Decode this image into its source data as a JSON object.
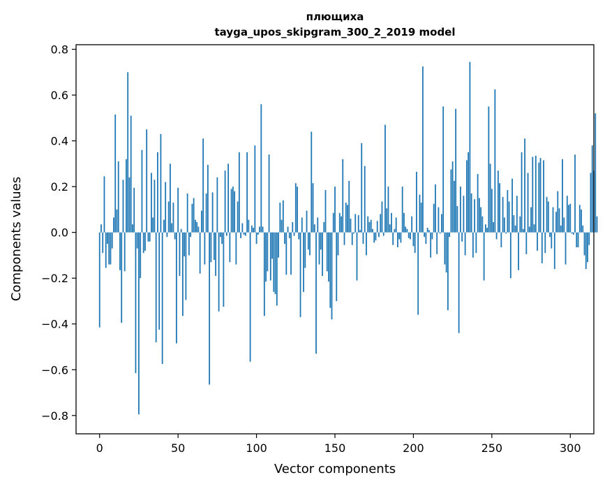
{
  "chart_data": {
    "type": "bar",
    "title": "плющиха",
    "subtitle": "tayga_upos_skipgram_300_2_2019 model",
    "xlabel": "Vector components",
    "ylabel": "Components values",
    "xlim": [
      -15,
      315
    ],
    "ylim": [
      -0.88,
      0.82
    ],
    "xticks": [
      0,
      50,
      100,
      150,
      200,
      250,
      300
    ],
    "xtick_labels": [
      "0",
      "50",
      "100",
      "150",
      "200",
      "250",
      "300"
    ],
    "yticks": [
      -0.8,
      -0.6,
      -0.4,
      -0.2,
      0.0,
      0.2,
      0.4,
      0.6,
      0.8
    ],
    "ytick_labels": [
      "−0.8",
      "−0.6",
      "−0.4",
      "−0.2",
      "0.0",
      "0.2",
      "0.4",
      "0.6",
      "0.8"
    ],
    "bar_color": "#1f77b4",
    "grid": false,
    "legend": "none",
    "values": [
      -0.415,
      0.035,
      -0.09,
      0.245,
      -0.155,
      -0.05,
      -0.14,
      -0.14,
      -0.07,
      0.065,
      0.515,
      0.1,
      0.31,
      -0.165,
      -0.395,
      0.23,
      -0.17,
      0.32,
      0.7,
      0.24,
      0.51,
      0.035,
      0.195,
      -0.615,
      -0.07,
      -0.795,
      -0.2,
      0.36,
      -0.09,
      -0.08,
      0.45,
      -0.04,
      -0.04,
      0.26,
      0.065,
      0.23,
      -0.48,
      0.35,
      -0.425,
      0.43,
      -0.575,
      0.055,
      0.22,
      -0.02,
      0.135,
      0.3,
      0.04,
      0.13,
      -0.03,
      -0.485,
      0.195,
      -0.19,
      0.015,
      -0.365,
      -0.105,
      -0.295,
      0.17,
      -0.1,
      -0.02,
      0.125,
      0.15,
      0.055,
      0.045,
      0.025,
      -0.18,
      0.095,
      0.41,
      -0.14,
      0.17,
      0.295,
      -0.665,
      -0.13,
      0.175,
      -0.12,
      -0.19,
      0.24,
      -0.345,
      -0.02,
      -0.05,
      -0.325,
      0.27,
      -0.015,
      0.3,
      -0.13,
      0.19,
      0.2,
      0.18,
      -0.14,
      0.135,
      0.35,
      -0.025,
      0.04,
      -0.01,
      -0.015,
      0.35,
      0.055,
      -0.565,
      0.03,
      0.02,
      0.38,
      -0.05,
      -0.01,
      0.025,
      0.56,
      0.025,
      -0.365,
      -0.215,
      -0.17,
      0.34,
      -0.21,
      -0.115,
      -0.26,
      -0.27,
      -0.32,
      -0.11,
      0.13,
      0.055,
      0.14,
      -0.05,
      -0.185,
      0.025,
      -0.025,
      -0.185,
      0.045,
      -0.015,
      0.215,
      0.2,
      -0.03,
      -0.37,
      0.065,
      -0.26,
      -0.155,
      0.095,
      -0.075,
      -0.1,
      0.44,
      0.215,
      0.035,
      -0.53,
      0.065,
      -0.14,
      -0.075,
      -0.19,
      0.045,
      0.185,
      -0.17,
      -0.215,
      -0.33,
      -0.38,
      0.085,
      0.2,
      -0.3,
      -0.1,
      0.085,
      0.07,
      0.32,
      -0.055,
      0.13,
      0.12,
      0.225,
      0.06,
      -0.055,
      -0.005,
      0.08,
      -0.21,
      0.075,
      0.01,
      0.39,
      -0.05,
      0.29,
      -0.1,
      0.07,
      0.045,
      0.055,
      0.015,
      -0.045,
      -0.035,
      0.05,
      -0.02,
      0.08,
      0.135,
      -0.015,
      0.47,
      0.105,
      0.2,
      0.035,
      0.085,
      -0.055,
      0.015,
      0.065,
      -0.065,
      -0.03,
      -0.045,
      0.2,
      0.085,
      0.025,
      0.015,
      -0.025,
      -0.03,
      0.07,
      -0.06,
      -0.09,
      0.265,
      -0.36,
      0.165,
      0.13,
      0.725,
      -0.02,
      -0.05,
      0.02,
      0.01,
      -0.11,
      -0.03,
      0.125,
      0.21,
      -0.095,
      0.11,
      -0.005,
      0.08,
      0.55,
      -0.14,
      -0.175,
      -0.34,
      -0.02,
      0.275,
      0.31,
      0.225,
      0.54,
      0.115,
      -0.44,
      0.2,
      -0.04,
      0.16,
      -0.1,
      0.315,
      0.35,
      0.745,
      0.17,
      -0.11,
      0.145,
      -0.09,
      0.255,
      0.15,
      0.11,
      0.07,
      -0.21,
      0.035,
      0.02,
      0.55,
      0.3,
      0.19,
      0.045,
      0.625,
      -0.03,
      0.27,
      0.215,
      -0.065,
      0.155,
      0.065,
      -0.005,
      0.185,
      0.135,
      -0.2,
      0.235,
      0.075,
      0.03,
      0.16,
      -0.165,
      0.07,
      0.35,
      0.015,
      0.41,
      -0.095,
      0.26,
      0.025,
      0.11,
      0.33,
      0.035,
      0.335,
      -0.08,
      0.305,
      0.325,
      -0.135,
      0.315,
      -0.09,
      0.155,
      0.135,
      -0.02,
      -0.07,
      0.11,
      -0.16,
      0.09,
      0.18,
      0.105,
      0.03,
      0.32,
      0.065,
      -0.14,
      0.16,
      0.12,
      0.125,
      -0.005,
      -0.01,
      0.34,
      -0.065,
      -0.065,
      0.12,
      0.1,
      0.03,
      -0.1,
      -0.16,
      -0.13,
      -0.055,
      0.26,
      0.38,
      0.27,
      0.52,
      0.07
    ]
  }
}
